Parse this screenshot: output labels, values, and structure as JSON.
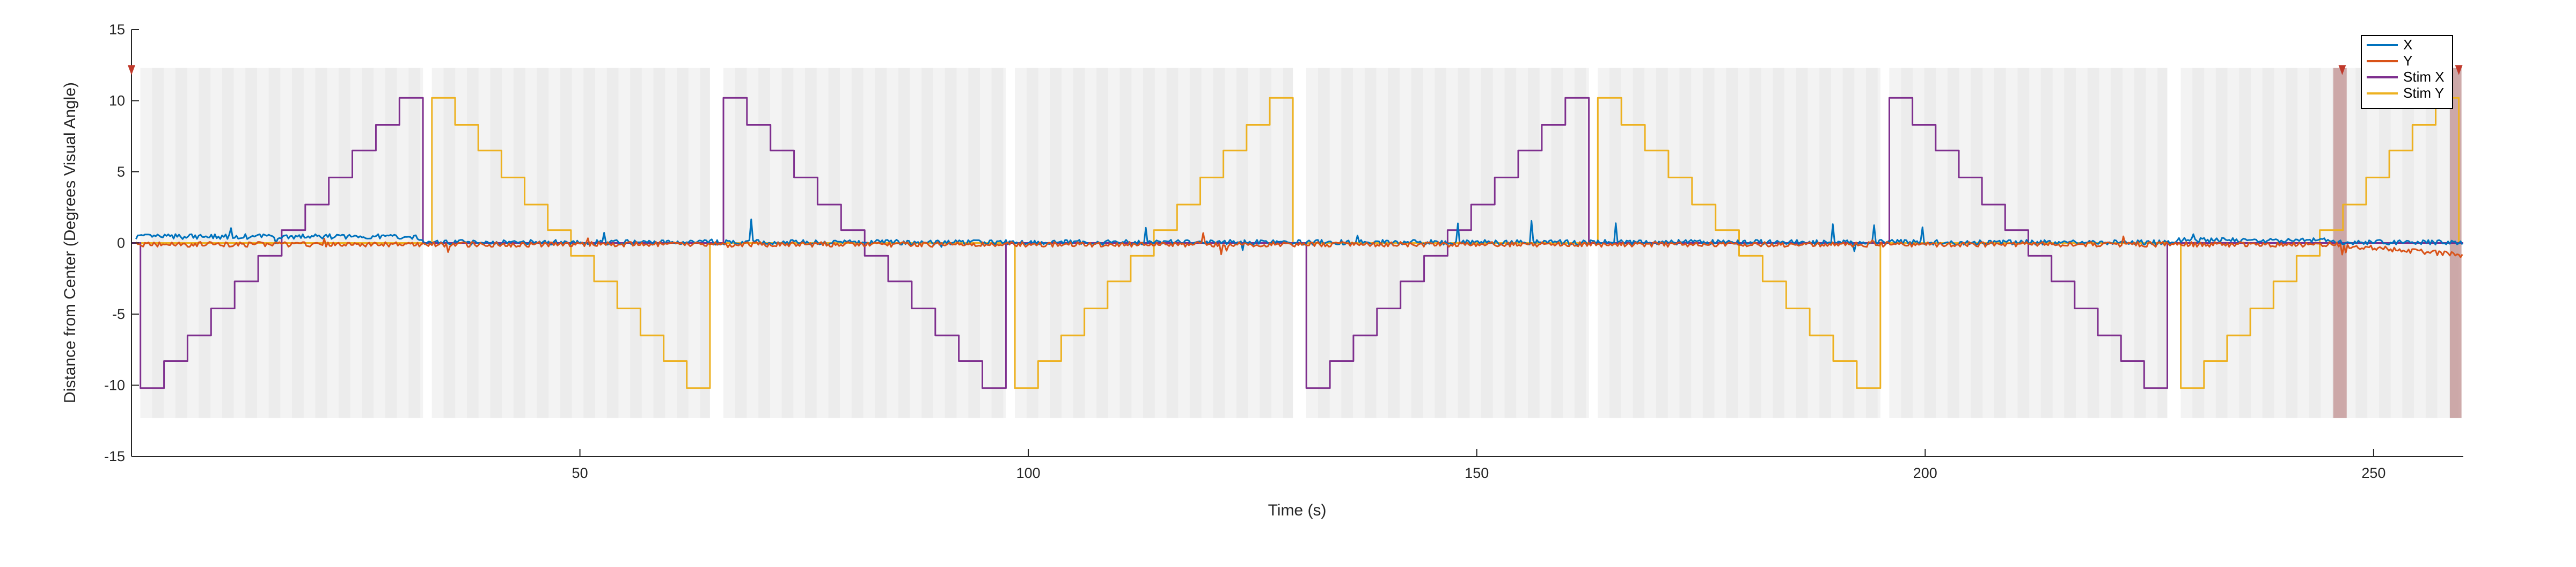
{
  "chart_data": {
    "type": "line",
    "title": "",
    "xlabel": "Time (s)",
    "ylabel": "Distance from Center (Degrees Visual Angle)",
    "xlim": [
      0,
      260
    ],
    "ylim": [
      -15,
      15
    ],
    "x_ticks": [
      50,
      100,
      150,
      200,
      250
    ],
    "y_ticks": [
      -15,
      -10,
      -5,
      0,
      5,
      10,
      15
    ],
    "grid": false,
    "legend_position": "top-right",
    "trial_windows": [
      [
        1,
        32.5
      ],
      [
        33.5,
        64.5
      ],
      [
        66,
        97.5
      ],
      [
        98.5,
        129.5
      ],
      [
        131,
        162.5
      ],
      [
        163.5,
        195
      ],
      [
        196,
        227
      ],
      [
        228.5,
        259.5
      ]
    ],
    "step_levels": [
      -10.2,
      -8.3,
      -6.5,
      -4.6,
      -2.7,
      -0.9,
      0.9,
      2.7,
      4.6,
      6.5,
      8.3,
      10.2
    ],
    "highlight_regions": [
      [
        245.5,
        247
      ],
      [
        258.5,
        259.8
      ]
    ],
    "marker_times": [
      246.5,
      259.5
    ],
    "series": [
      {
        "name": "X",
        "color": "#0072BD"
      },
      {
        "name": "Y",
        "color": "#D95319"
      },
      {
        "name": "Stim X",
        "color": "#7E2F8E"
      },
      {
        "name": "Stim Y",
        "color": "#EDB120"
      }
    ]
  }
}
